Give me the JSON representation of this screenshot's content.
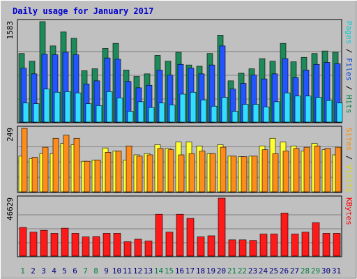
{
  "title": "Daily usage for January 2017",
  "chart_data": [
    {
      "type": "bar",
      "title": "Daily usage for January 2017",
      "y_max_label": "1583",
      "ylim": [
        0,
        1583
      ],
      "right_labels": [
        {
          "text": "Pages",
          "color": "#00cccc"
        },
        {
          "text": " / ",
          "color": "#000000"
        },
        {
          "text": "Files",
          "color": "#0044dd"
        },
        {
          "text": " / ",
          "color": "#000000"
        },
        {
          "text": "Hits",
          "color": "#008040"
        }
      ],
      "categories": [
        "1",
        "2",
        "3",
        "4",
        "5",
        "6",
        "7",
        "8",
        "9",
        "10",
        "11",
        "12",
        "13",
        "14",
        "15",
        "16",
        "17",
        "18",
        "19",
        "20",
        "21",
        "22",
        "23",
        "24",
        "25",
        "26",
        "27",
        "28",
        "29",
        "30",
        "31"
      ],
      "series": [
        {
          "name": "Hits",
          "color": "#1e8a5a",
          "values": [
            1080,
            960,
            1583,
            1200,
            1420,
            1320,
            810,
            840,
            1160,
            1240,
            820,
            720,
            760,
            1050,
            960,
            1100,
            900,
            880,
            1080,
            1370,
            650,
            770,
            840,
            1000,
            960,
            1240,
            950,
            1020,
            1080,
            1120,
            1100
          ]
        },
        {
          "name": "Files",
          "color": "#2255ff",
          "values": [
            850,
            760,
            1070,
            1060,
            1100,
            1060,
            600,
            650,
            1010,
            990,
            640,
            540,
            580,
            820,
            740,
            910,
            850,
            760,
            900,
            1200,
            520,
            610,
            740,
            680,
            760,
            1000,
            700,
            820,
            910,
            940,
            920
          ]
        },
        {
          "name": "Pages",
          "color": "#33ddff",
          "values": [
            300,
            290,
            520,
            470,
            480,
            460,
            290,
            260,
            480,
            380,
            170,
            320,
            230,
            300,
            270,
            440,
            470,
            350,
            250,
            390,
            170,
            280,
            280,
            240,
            320,
            460,
            410,
            410,
            390,
            340,
            300
          ]
        }
      ]
    },
    {
      "type": "bar",
      "y_max_label": "249",
      "ylim": [
        0,
        249
      ],
      "right_labels": [
        {
          "text": "Sites",
          "color": "#ff8800"
        },
        {
          "text": " / ",
          "color": "#000000"
        },
        {
          "text": "Visits",
          "color": "#dddd00"
        }
      ],
      "categories": [
        "1",
        "2",
        "3",
        "4",
        "5",
        "6",
        "7",
        "8",
        "9",
        "10",
        "11",
        "12",
        "13",
        "14",
        "15",
        "16",
        "17",
        "18",
        "19",
        "20",
        "21",
        "22",
        "23",
        "24",
        "25",
        "26",
        "27",
        "28",
        "29",
        "30",
        "31"
      ],
      "series": [
        {
          "name": "Visits",
          "color": "#ffff33",
          "values": [
            140,
            130,
            150,
            150,
            190,
            185,
            120,
            125,
            172,
            160,
            125,
            145,
            150,
            185,
            170,
            195,
            195,
            180,
            150,
            185,
            140,
            138,
            140,
            180,
            210,
            195,
            180,
            160,
            190,
            165,
            145
          ]
        },
        {
          "name": "Sites",
          "color": "#ff8c1a",
          "values": [
            249,
            135,
            175,
            210,
            222,
            210,
            120,
            125,
            155,
            160,
            180,
            140,
            145,
            170,
            165,
            145,
            150,
            160,
            150,
            175,
            140,
            138,
            140,
            165,
            150,
            160,
            170,
            175,
            180,
            170,
            175
          ]
        }
      ]
    },
    {
      "type": "bar",
      "y_max_label": "46629",
      "ylim": [
        0,
        46629
      ],
      "right_labels": [
        {
          "text": "KBytes",
          "color": "#ff0000"
        }
      ],
      "categories": [
        "1",
        "2",
        "3",
        "4",
        "5",
        "6",
        "7",
        "8",
        "9",
        "10",
        "11",
        "12",
        "13",
        "14",
        "15",
        "16",
        "17",
        "18",
        "19",
        "20",
        "21",
        "22",
        "23",
        "24",
        "25",
        "26",
        "27",
        "28",
        "29",
        "30",
        "31"
      ],
      "series": [
        {
          "name": "KBytes",
          "color": "#ff1a1a",
          "values": [
            23000,
            19200,
            20700,
            18300,
            22400,
            18300,
            15400,
            15600,
            18300,
            18300,
            11500,
            13500,
            12100,
            33600,
            19200,
            33600,
            30300,
            15400,
            16300,
            46629,
            13000,
            13000,
            12500,
            17700,
            17700,
            34600,
            17700,
            19200,
            26900,
            18300,
            18300
          ]
        }
      ]
    }
  ],
  "x_label_colors": {
    "weekday": "#000080",
    "weekend": "#008040"
  },
  "weekend_days": [
    "1",
    "7",
    "8",
    "14",
    "15",
    "21",
    "22",
    "28",
    "29"
  ]
}
